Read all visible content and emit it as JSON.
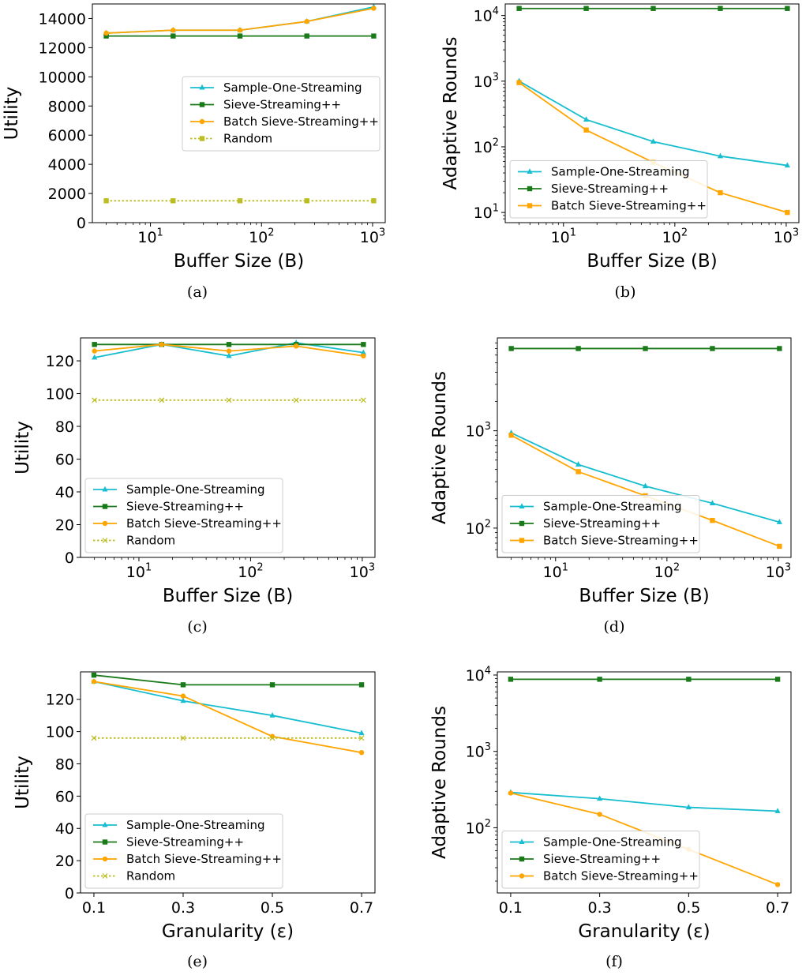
{
  "colors": {
    "sample_one": "#17becf",
    "sieve": "#2ca02c",
    "sieve_dark": "#1a7a1a",
    "batch": "#ffa500",
    "random": "#bcbd22"
  },
  "chart_data": [
    {
      "id": "a",
      "caption": "(a)",
      "type": "line",
      "xscale": "log",
      "yscale": "linear",
      "xlabel": "Buffer Size (B)",
      "ylabel": "Utility",
      "xlim": [
        3,
        1300
      ],
      "ylim": [
        0,
        15000
      ],
      "xticks": [
        {
          "v": 10,
          "l": "10",
          "sup": "1"
        },
        {
          "v": 100,
          "l": "10",
          "sup": "2"
        },
        {
          "v": 1000,
          "l": "10",
          "sup": "3"
        }
      ],
      "yticks": [
        {
          "v": 0,
          "l": "0"
        },
        {
          "v": 2000,
          "l": "2000"
        },
        {
          "v": 4000,
          "l": "4000"
        },
        {
          "v": 6000,
          "l": "6000"
        },
        {
          "v": 8000,
          "l": "8000"
        },
        {
          "v": 10000,
          "l": "10000"
        },
        {
          "v": 12000,
          "l": "12000"
        },
        {
          "v": 14000,
          "l": "14000"
        }
      ],
      "x": [
        4,
        16,
        64,
        256,
        1024
      ],
      "legend": "center-right",
      "series": [
        {
          "name": "Sample-One-Streaming",
          "color_key": "sample_one",
          "marker": "triangle",
          "dash": false,
          "values": [
            13000,
            13200,
            13200,
            13800,
            14800
          ]
        },
        {
          "name": "Sieve-Streaming++",
          "color_key": "sieve_dark",
          "marker": "square",
          "dash": false,
          "values": [
            12800,
            12800,
            12800,
            12800,
            12800
          ]
        },
        {
          "name": "Batch Sieve-Streaming++",
          "color_key": "batch",
          "marker": "circle",
          "dash": false,
          "values": [
            13000,
            13200,
            13200,
            13800,
            14700
          ]
        },
        {
          "name": "Random",
          "color_key": "random",
          "marker": "square",
          "dash": true,
          "values": [
            1500,
            1500,
            1500,
            1500,
            1500
          ]
        }
      ]
    },
    {
      "id": "b",
      "caption": "(b)",
      "type": "line",
      "xscale": "log",
      "yscale": "log",
      "xlabel": "Buffer Size (B)",
      "ylabel": "Adaptive Rounds",
      "xlim": [
        3,
        1300
      ],
      "ylim": [
        7,
        15000
      ],
      "xticks": [
        {
          "v": 10,
          "l": "10",
          "sup": "1"
        },
        {
          "v": 100,
          "l": "10",
          "sup": "2"
        },
        {
          "v": 1000,
          "l": "10",
          "sup": "3"
        }
      ],
      "yticks": [
        {
          "v": 10,
          "l": "10",
          "sup": "1"
        },
        {
          "v": 100,
          "l": "10",
          "sup": "2"
        },
        {
          "v": 1000,
          "l": "10",
          "sup": "3"
        },
        {
          "v": 10000,
          "l": "10",
          "sup": "4"
        }
      ],
      "x": [
        4,
        16,
        64,
        256,
        1024
      ],
      "legend": "lower-left",
      "series": [
        {
          "name": "Sample-One-Streaming",
          "color_key": "sample_one",
          "marker": "triangle",
          "dash": false,
          "values": [
            1000,
            260,
            120,
            72,
            52
          ]
        },
        {
          "name": "Sieve-Streaming++",
          "color_key": "sieve_dark",
          "marker": "square",
          "dash": false,
          "values": [
            12800,
            12800,
            12800,
            12800,
            12800
          ]
        },
        {
          "name": "Batch Sieve-Streaming++",
          "color_key": "batch",
          "marker": "square",
          "dash": false,
          "values": [
            950,
            180,
            58,
            20,
            10
          ]
        }
      ]
    },
    {
      "id": "c",
      "caption": "(c)",
      "type": "line",
      "xscale": "log",
      "yscale": "linear",
      "xlabel": "Buffer Size (B)",
      "ylabel": "Utility",
      "xlim": [
        3,
        1300
      ],
      "ylim": [
        0,
        134
      ],
      "xticks": [
        {
          "v": 10,
          "l": "10",
          "sup": "1"
        },
        {
          "v": 100,
          "l": "10",
          "sup": "2"
        },
        {
          "v": 1000,
          "l": "10",
          "sup": "3"
        }
      ],
      "yticks": [
        {
          "v": 0,
          "l": "0"
        },
        {
          "v": 20,
          "l": "20"
        },
        {
          "v": 40,
          "l": "40"
        },
        {
          "v": 60,
          "l": "60"
        },
        {
          "v": 80,
          "l": "80"
        },
        {
          "v": 100,
          "l": "100"
        },
        {
          "v": 120,
          "l": "120"
        }
      ],
      "x": [
        4,
        16,
        64,
        256,
        1024
      ],
      "legend": "lower-left",
      "series": [
        {
          "name": "Sample-One-Streaming",
          "color_key": "sample_one",
          "marker": "triangle",
          "dash": false,
          "values": [
            122,
            130,
            123,
            131,
            125
          ]
        },
        {
          "name": "Sieve-Streaming++",
          "color_key": "sieve_dark",
          "marker": "square",
          "dash": false,
          "values": [
            130,
            130,
            130,
            130,
            130
          ]
        },
        {
          "name": "Batch Sieve-Streaming++",
          "color_key": "batch",
          "marker": "circle",
          "dash": false,
          "values": [
            126,
            130,
            126,
            129,
            123
          ]
        },
        {
          "name": "Random",
          "color_key": "random",
          "marker": "x",
          "dash": true,
          "values": [
            96,
            96,
            96,
            96,
            96
          ]
        }
      ]
    },
    {
      "id": "d",
      "caption": "(d)",
      "type": "line",
      "xscale": "log",
      "yscale": "log",
      "xlabel": "Buffer Size (B)",
      "ylabel": "Adaptive Rounds",
      "xlim": [
        3,
        1300
      ],
      "ylim": [
        50,
        9000
      ],
      "xticks": [
        {
          "v": 10,
          "l": "10",
          "sup": "1"
        },
        {
          "v": 100,
          "l": "10",
          "sup": "2"
        },
        {
          "v": 1000,
          "l": "10",
          "sup": "3"
        }
      ],
      "yticks": [
        {
          "v": 100,
          "l": "10",
          "sup": "2"
        },
        {
          "v": 1000,
          "l": "10",
          "sup": "3"
        }
      ],
      "x": [
        4,
        16,
        64,
        256,
        1024
      ],
      "legend": "lower-left",
      "series": [
        {
          "name": "Sample-One-Streaming",
          "color_key": "sample_one",
          "marker": "triangle",
          "dash": false,
          "values": [
            950,
            450,
            270,
            180,
            115
          ]
        },
        {
          "name": "Sieve-Streaming++",
          "color_key": "sieve_dark",
          "marker": "square",
          "dash": false,
          "values": [
            7000,
            7000,
            7000,
            7000,
            7000
          ]
        },
        {
          "name": "Batch Sieve-Streaming++",
          "color_key": "batch",
          "marker": "square",
          "dash": false,
          "values": [
            900,
            380,
            215,
            120,
            65
          ]
        }
      ]
    },
    {
      "id": "e",
      "caption": "(e)",
      "type": "line",
      "xscale": "linear",
      "yscale": "linear",
      "xlabel": "Granularity (ε)",
      "ylabel": "Utility",
      "xlim": [
        0.07,
        0.73
      ],
      "ylim": [
        0,
        137
      ],
      "xticks": [
        {
          "v": 0.1,
          "l": "0.1"
        },
        {
          "v": 0.3,
          "l": "0.3"
        },
        {
          "v": 0.5,
          "l": "0.5"
        },
        {
          "v": 0.7,
          "l": "0.7"
        }
      ],
      "yticks": [
        {
          "v": 0,
          "l": "0"
        },
        {
          "v": 20,
          "l": "20"
        },
        {
          "v": 40,
          "l": "40"
        },
        {
          "v": 60,
          "l": "60"
        },
        {
          "v": 80,
          "l": "80"
        },
        {
          "v": 100,
          "l": "100"
        },
        {
          "v": 120,
          "l": "120"
        }
      ],
      "x": [
        0.1,
        0.3,
        0.5,
        0.7
      ],
      "legend": "lower-left",
      "series": [
        {
          "name": "Sample-One-Streaming",
          "color_key": "sample_one",
          "marker": "triangle",
          "dash": false,
          "values": [
            131,
            119,
            110,
            99
          ]
        },
        {
          "name": "Sieve-Streaming++",
          "color_key": "sieve_dark",
          "marker": "square",
          "dash": false,
          "values": [
            135,
            129,
            129,
            129
          ]
        },
        {
          "name": "Batch Sieve-Streaming++",
          "color_key": "batch",
          "marker": "circle",
          "dash": false,
          "values": [
            131,
            122,
            97,
            87
          ]
        },
        {
          "name": "Random",
          "color_key": "random",
          "marker": "x",
          "dash": true,
          "values": [
            96,
            96,
            96,
            96
          ]
        }
      ]
    },
    {
      "id": "f",
      "caption": "(f)",
      "type": "line",
      "xscale": "linear",
      "yscale": "log",
      "xlabel": "Granularity (ε)",
      "ylabel": "Adaptive Rounds",
      "xlim": [
        0.07,
        0.73
      ],
      "ylim": [
        14,
        11000
      ],
      "xticks": [
        {
          "v": 0.1,
          "l": "0.1"
        },
        {
          "v": 0.3,
          "l": "0.3"
        },
        {
          "v": 0.5,
          "l": "0.5"
        },
        {
          "v": 0.7,
          "l": "0.7"
        }
      ],
      "yticks": [
        {
          "v": 100,
          "l": "10",
          "sup": "2"
        },
        {
          "v": 1000,
          "l": "10",
          "sup": "3"
        },
        {
          "v": 10000,
          "l": "10",
          "sup": "4"
        }
      ],
      "x": [
        0.1,
        0.3,
        0.5,
        0.7
      ],
      "legend": "lower-left",
      "series": [
        {
          "name": "Sample-One-Streaming",
          "color_key": "sample_one",
          "marker": "triangle",
          "dash": false,
          "values": [
            290,
            240,
            185,
            165
          ]
        },
        {
          "name": "Sieve-Streaming++",
          "color_key": "sieve_dark",
          "marker": "square",
          "dash": false,
          "values": [
            8800,
            8800,
            8800,
            8800
          ]
        },
        {
          "name": "Batch Sieve-Streaming++",
          "color_key": "batch",
          "marker": "circle",
          "dash": false,
          "values": [
            285,
            150,
            52,
            18
          ]
        }
      ]
    }
  ]
}
